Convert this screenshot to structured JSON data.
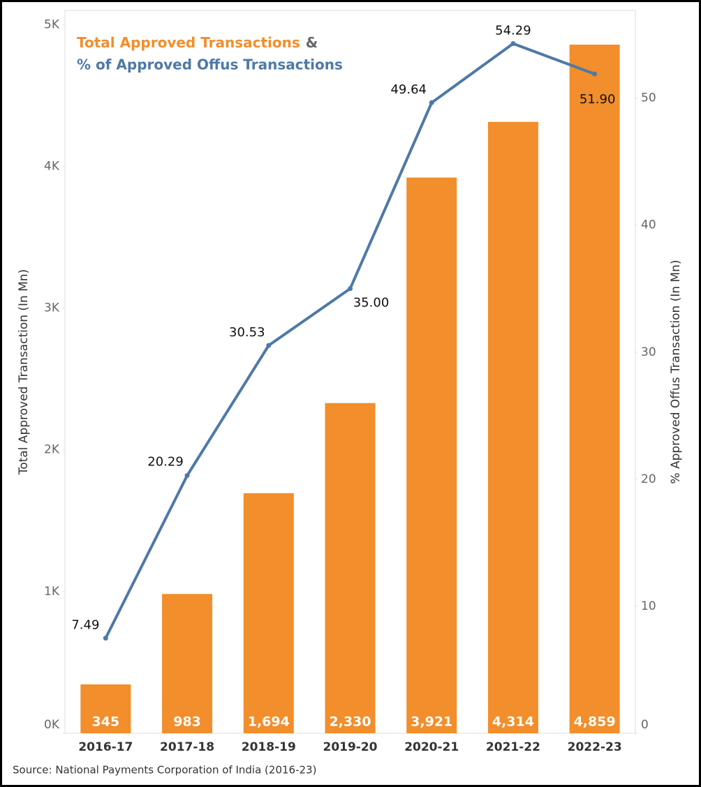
{
  "chart_data": {
    "type": "bar-line",
    "title_connector": "&",
    "ylabel": "Total Approved Transaction (In Mn)",
    "y2label": "% Approved Offus Transaction (In Mn)",
    "source": "Source: National Payments Corporation of India (2016-23)",
    "categories": [
      "2016-17",
      "2017-18",
      "2018-19",
      "2019-20",
      "2020-21",
      "2021-22",
      "2022-23"
    ],
    "series": [
      {
        "name": "Total Approved Transactions",
        "type": "bar",
        "color": "#f28e2b",
        "values": [
          345,
          983,
          1694,
          2330,
          3921,
          4314,
          4859
        ],
        "value_labels": [
          "345",
          "983",
          "1,694",
          "2,330",
          "3,921",
          "4,314",
          "4,859"
        ]
      },
      {
        "name": "% of Approved Offus Transactions",
        "type": "line",
        "axis": "y2",
        "color": "#4e79a7",
        "values": [
          7.49,
          20.29,
          30.53,
          35.0,
          49.64,
          54.29,
          51.9
        ],
        "value_labels": [
          "7.49",
          "20.29",
          "30.53",
          "35.00",
          "49.64",
          "54.29",
          "51.90"
        ]
      }
    ],
    "ylim": [
      0,
      5100
    ],
    "yticks": [
      {
        "value": 0,
        "label": "0K"
      },
      {
        "value": 1000,
        "label": "1K"
      },
      {
        "value": 2000,
        "label": "2K"
      },
      {
        "value": 3000,
        "label": "3K"
      },
      {
        "value": 4000,
        "label": "4K"
      },
      {
        "value": 5000,
        "label": "5K"
      }
    ],
    "y2lim": [
      0,
      56.9
    ],
    "y2ticks": [
      0,
      10,
      20,
      30,
      40,
      50
    ],
    "grid": false
  }
}
